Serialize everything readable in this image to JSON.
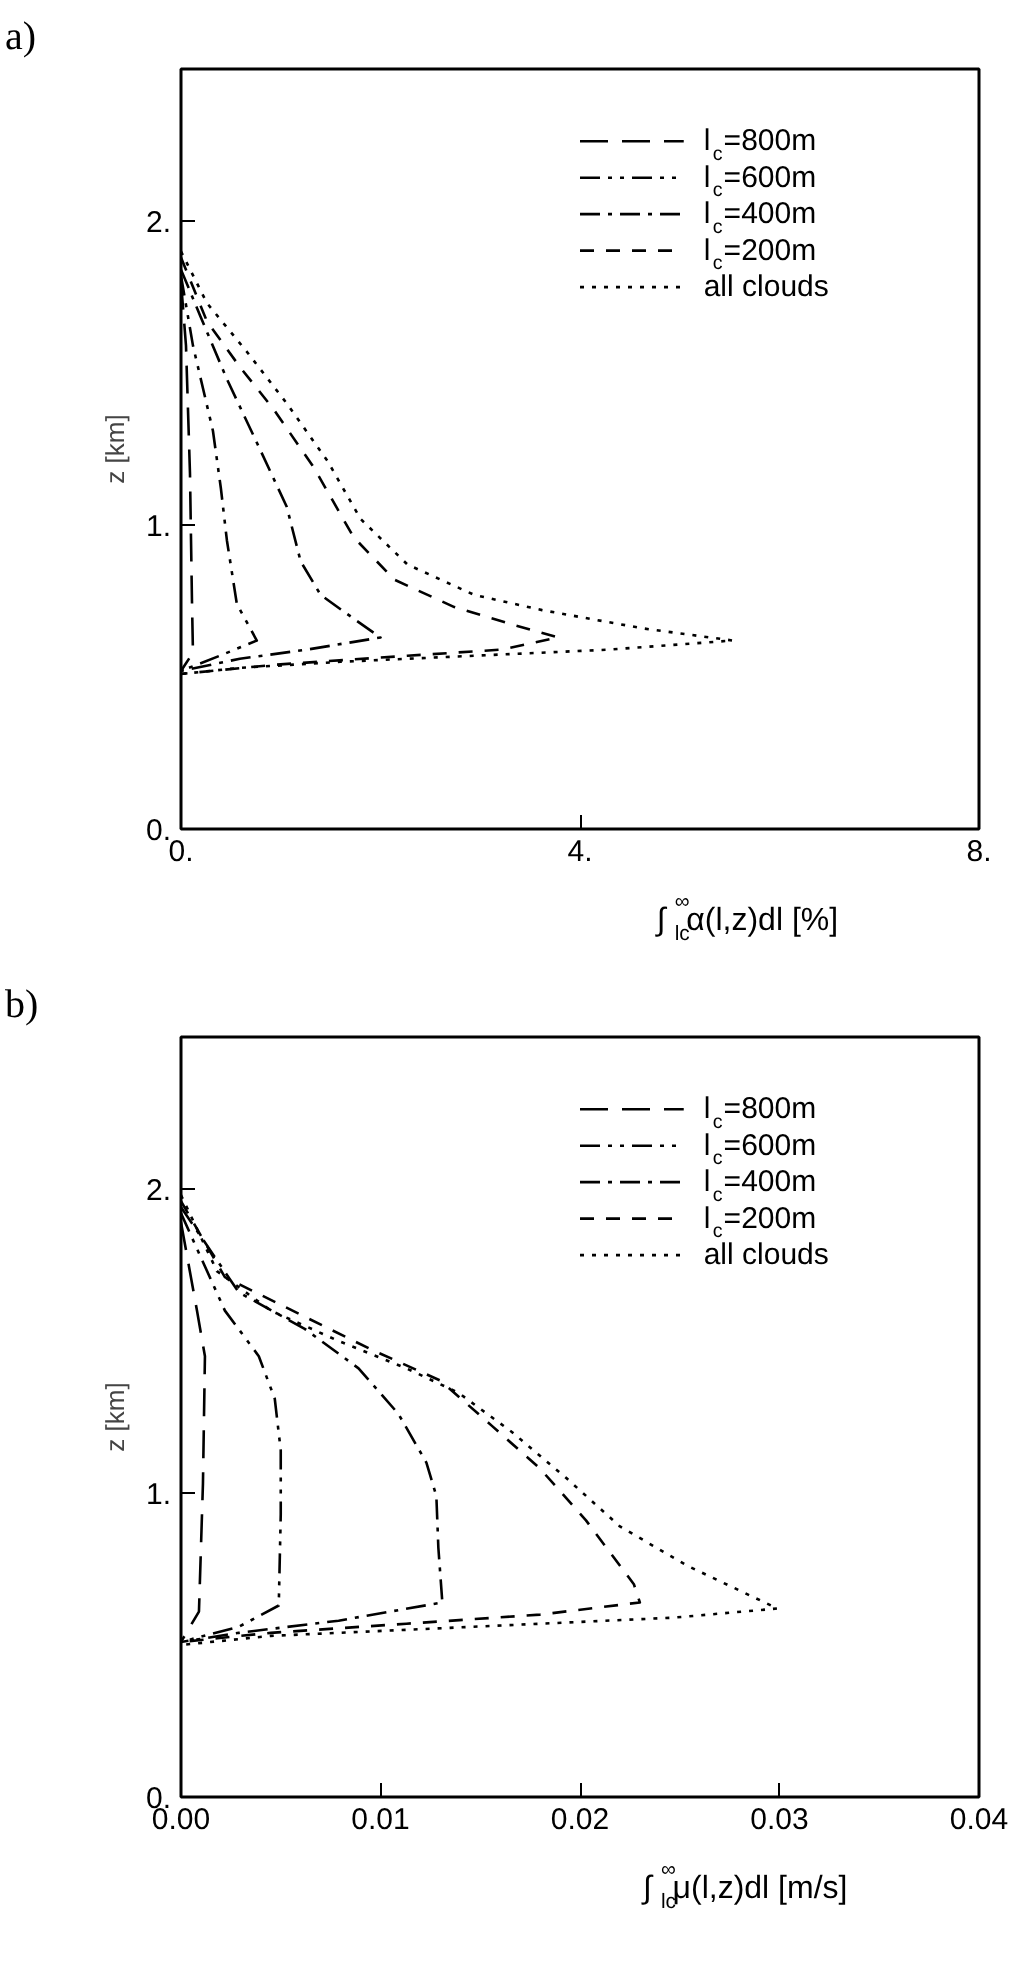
{
  "chart_data": [
    {
      "type": "line",
      "title": "a)",
      "xlabel": "∫$_{lc}$$^{∞}$α(l,z)dl   [%]",
      "ylabel": "z [km]",
      "xlim": [
        0,
        8
      ],
      "ylim": [
        0,
        2.5
      ],
      "xticks": [
        {
          "value": 0,
          "label": "0."
        },
        {
          "value": 4,
          "label": "4."
        },
        {
          "value": 8,
          "label": "8."
        }
      ],
      "yticks": [
        {
          "value": 0,
          "label": "0."
        },
        {
          "value": 1,
          "label": "1."
        },
        {
          "value": 2,
          "label": "2."
        }
      ],
      "grid": false,
      "legend": "top right",
      "series": [
        {
          "name": "l$_{c}$=800m",
          "color": "#000000",
          "line_style": "longdash",
          "x": [
            0,
            0.05,
            0.09,
            0.11,
            0.12,
            0
          ],
          "values": [
            1.8,
            1.59,
            1.17,
            0.75,
            0.58,
            0.52
          ]
        },
        {
          "name": "l$_{c}$=600m",
          "color": "#000000",
          "line_style": "dashdotdot",
          "x": [
            0,
            0.12,
            0.32,
            0.4,
            0.46,
            0.56,
            0.76,
            0.39,
            0
          ],
          "values": [
            1.82,
            1.59,
            1.31,
            1.12,
            0.95,
            0.74,
            0.62,
            0.57,
            0.52
          ]
        },
        {
          "name": "l$_{c}$=400m",
          "color": "#000000",
          "line_style": "dashdot",
          "x": [
            0,
            0.19,
            0.46,
            0.79,
            1.06,
            1.2,
            1.4,
            1.74,
            2.0,
            1.26,
            0.59,
            0
          ],
          "values": [
            1.84,
            1.69,
            1.48,
            1.25,
            1.06,
            0.88,
            0.77,
            0.69,
            0.63,
            0.59,
            0.56,
            0.52
          ]
        },
        {
          "name": "l$_{c}$=200m",
          "color": "#000000",
          "line_style": "dashed",
          "x": [
            0,
            0.26,
            0.59,
            0.93,
            1.33,
            1.73,
            2.14,
            2.74,
            3.35,
            3.78,
            3.21,
            2.27,
            0.93,
            0
          ],
          "values": [
            1.88,
            1.67,
            1.52,
            1.38,
            1.19,
            0.96,
            0.82,
            0.73,
            0.67,
            0.63,
            0.59,
            0.57,
            0.54,
            0.51
          ]
        },
        {
          "name": "all clouds",
          "color": "#000000",
          "line_style": "dotted",
          "x": [
            0,
            0.26,
            0.66,
            1.06,
            1.47,
            1.8,
            2.27,
            2.94,
            3.62,
            4.63,
            5.53,
            4.29,
            2.94,
            1.6,
            0.59,
            0
          ],
          "values": [
            1.9,
            1.73,
            1.57,
            1.4,
            1.21,
            1.02,
            0.87,
            0.77,
            0.72,
            0.66,
            0.62,
            0.59,
            0.57,
            0.55,
            0.53,
            0.51
          ]
        }
      ]
    },
    {
      "type": "line",
      "title": "b)",
      "xlabel": "∫$_{lc}$$^{∞}$μ(l,z)dl   [m/s]",
      "ylabel": "z [km]",
      "xlim": [
        0,
        0.04
      ],
      "ylim": [
        0,
        2.5
      ],
      "xticks": [
        {
          "value": 0,
          "label": "0.00"
        },
        0.01,
        0.02,
        0.03,
        0.04
      ],
      "yticks": [
        {
          "value": 0,
          "label": "0."
        },
        {
          "value": 1,
          "label": "1."
        },
        {
          "value": 2,
          "label": "2."
        }
      ],
      "grid": false,
      "legend": "top right",
      "series": [
        {
          "name": "l$_{c}$=800m",
          "color": "#000000",
          "line_style": "longdash",
          "x": [
            0,
            0.0008,
            0.0012,
            0.0011,
            0.0009,
            0
          ],
          "values": [
            1.89,
            1.6,
            1.45,
            1.03,
            0.61,
            0.51
          ]
        },
        {
          "name": "l$_{c}$=600m",
          "color": "#000000",
          "line_style": "dashdotdot",
          "x": [
            0,
            0.0022,
            0.0039,
            0.0047,
            0.005,
            0.005,
            0.0049,
            0.0029,
            0
          ],
          "values": [
            1.92,
            1.6,
            1.45,
            1.31,
            1.14,
            0.93,
            0.63,
            0.56,
            0.51
          ]
        },
        {
          "name": "l$_{c}$=400m",
          "color": "#000000",
          "line_style": "dashdot",
          "x": [
            0,
            0.0029,
            0.0062,
            0.0089,
            0.0109,
            0.0123,
            0.0128,
            0.0129,
            0.0131,
            0.0079,
            0.0029,
            0
          ],
          "values": [
            1.94,
            1.66,
            1.54,
            1.41,
            1.26,
            1.1,
            0.99,
            0.82,
            0.64,
            0.58,
            0.54,
            0.51
          ]
        },
        {
          "name": "l$_{c}$=200m",
          "color": "#000000",
          "line_style": "dashed",
          "x": [
            0,
            0.0022,
            0.0062,
            0.0096,
            0.013,
            0.0156,
            0.018,
            0.0203,
            0.0227,
            0.023,
            0.018,
            0.0113,
            0.0045,
            0
          ],
          "values": [
            1.96,
            1.71,
            1.58,
            1.47,
            1.37,
            1.22,
            1.08,
            0.91,
            0.7,
            0.64,
            0.6,
            0.57,
            0.54,
            0.51
          ]
        },
        {
          "name": "all clouds",
          "color": "#000000",
          "line_style": "dotted",
          "x": [
            0,
            0.0018,
            0.0045,
            0.0079,
            0.0113,
            0.0139,
            0.0166,
            0.0193,
            0.022,
            0.0254,
            0.0299,
            0.0247,
            0.018,
            0.0113,
            0.0045,
            0
          ],
          "values": [
            1.98,
            1.73,
            1.6,
            1.5,
            1.41,
            1.33,
            1.2,
            1.05,
            0.89,
            0.76,
            0.62,
            0.59,
            0.57,
            0.55,
            0.53,
            0.5
          ]
        }
      ]
    }
  ]
}
